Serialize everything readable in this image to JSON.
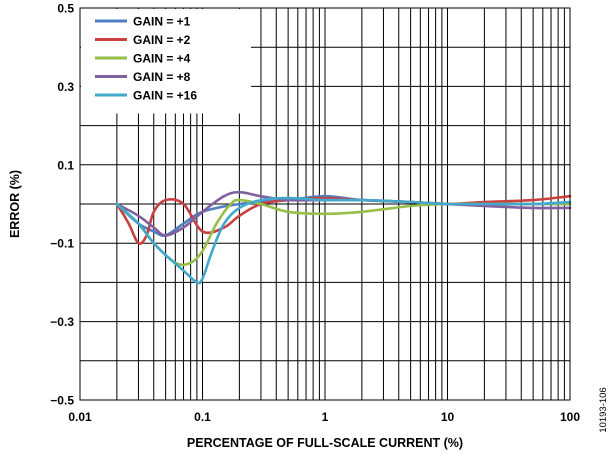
{
  "chart_data": {
    "type": "line",
    "title": "",
    "xlabel": "PERCENTAGE OF FULL-SCALE CURRENT (%)",
    "ylabel": "ERROR (%)",
    "xscale": "log",
    "xlim": [
      0.01,
      100
    ],
    "ylim": [
      -0.5,
      0.5
    ],
    "grid": true,
    "legend_position": "top-left",
    "x_ticks": [
      "0.01",
      "0.1",
      "1",
      "10",
      "100"
    ],
    "y_ticks": [
      "0.5",
      "0.3",
      "0.1",
      "−0.1",
      "−0.3",
      "−0.5"
    ],
    "series": [
      {
        "name": "GAIN = +1",
        "color": "#4F7FC0",
        "x": [
          0.02,
          0.03,
          0.04,
          0.05,
          0.07,
          0.1,
          0.2,
          0.5,
          1,
          2,
          5,
          10,
          20,
          50,
          100
        ],
        "y": [
          0.0,
          -0.05,
          -0.07,
          -0.08,
          -0.05,
          -0.02,
          0.0,
          0.01,
          0.02,
          0.01,
          0.005,
          0.0,
          0.0,
          0.0,
          0.0
        ]
      },
      {
        "name": "GAIN = +2",
        "color": "#C9413E",
        "x": [
          0.02,
          0.025,
          0.03,
          0.035,
          0.04,
          0.05,
          0.07,
          0.1,
          0.15,
          0.2,
          0.3,
          0.5,
          1,
          2,
          5,
          10,
          20,
          50,
          100
        ],
        "y": [
          0.0,
          -0.05,
          -0.1,
          -0.08,
          -0.02,
          0.01,
          0.0,
          -0.07,
          -0.06,
          -0.03,
          0.0,
          0.01,
          0.015,
          0.01,
          0.005,
          0.0,
          0.005,
          0.01,
          0.02
        ]
      },
      {
        "name": "GAIN = +4",
        "color": "#96BE49",
        "x": [
          0.02,
          0.03,
          0.04,
          0.06,
          0.08,
          0.1,
          0.13,
          0.17,
          0.2,
          0.3,
          0.5,
          1,
          2,
          5,
          10,
          20,
          50,
          100
        ],
        "y": [
          0.0,
          -0.05,
          -0.1,
          -0.15,
          -0.15,
          -0.12,
          -0.05,
          0.0,
          0.01,
          0.0,
          -0.02,
          -0.025,
          -0.02,
          -0.005,
          0.0,
          0.0,
          0.0,
          0.0
        ]
      },
      {
        "name": "GAIN = +8",
        "color": "#8160A0",
        "x": [
          0.02,
          0.03,
          0.04,
          0.05,
          0.07,
          0.1,
          0.15,
          0.2,
          0.3,
          0.5,
          1,
          2,
          5,
          10,
          20,
          50,
          100
        ],
        "y": [
          0.0,
          -0.03,
          -0.06,
          -0.08,
          -0.06,
          -0.02,
          0.02,
          0.03,
          0.02,
          0.01,
          0.01,
          0.01,
          0.005,
          0.0,
          -0.005,
          -0.01,
          -0.01
        ]
      },
      {
        "name": "GAIN = +16",
        "color": "#42A8CC",
        "x": [
          0.02,
          0.03,
          0.04,
          0.05,
          0.07,
          0.09,
          0.1,
          0.12,
          0.15,
          0.2,
          0.3,
          0.5,
          1,
          2,
          5,
          10,
          20,
          50,
          100
        ],
        "y": [
          0.0,
          -0.05,
          -0.1,
          -0.13,
          -0.17,
          -0.2,
          -0.19,
          -0.12,
          -0.05,
          -0.01,
          0.01,
          0.015,
          0.01,
          0.01,
          0.005,
          0.0,
          0.0,
          0.0,
          0.005
        ]
      }
    ]
  },
  "figure_id": "10193-106"
}
